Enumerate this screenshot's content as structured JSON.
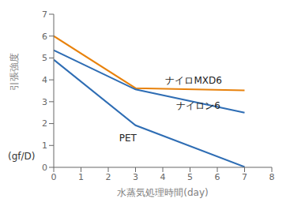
{
  "chart_data": {
    "type": "line",
    "x": [
      0,
      3,
      7
    ],
    "series": [
      {
        "color": "#E8820C",
        "values": [
          6.0,
          3.62,
          3.52
        ]
      },
      {
        "color": "#2E6DB4",
        "values": [
          5.35,
          3.56,
          2.5
        ]
      },
      {
        "color": "#2E6DB4",
        "values": [
          4.92,
          1.92,
          0.02
        ]
      }
    ],
    "xlabel": "水蒸気処理時間(day)",
    "ylabel": "引張強度",
    "ylabel_unit": "(gf/D)",
    "xlim": [
      0,
      8
    ],
    "ylim": [
      0,
      7
    ],
    "xticks": [
      0,
      1,
      2,
      3,
      4,
      5,
      6,
      7,
      8
    ],
    "yticks": [
      0,
      1,
      2,
      3,
      4,
      5,
      6,
      7
    ],
    "annotations": [
      {
        "text": "ナイロMXD6",
        "x": 4.1,
        "y": 3.98
      },
      {
        "text": "ナイロン6",
        "x": 4.5,
        "y": 2.83
      },
      {
        "text": "PET",
        "x": 2.4,
        "y": 1.35
      }
    ],
    "grid": false
  }
}
